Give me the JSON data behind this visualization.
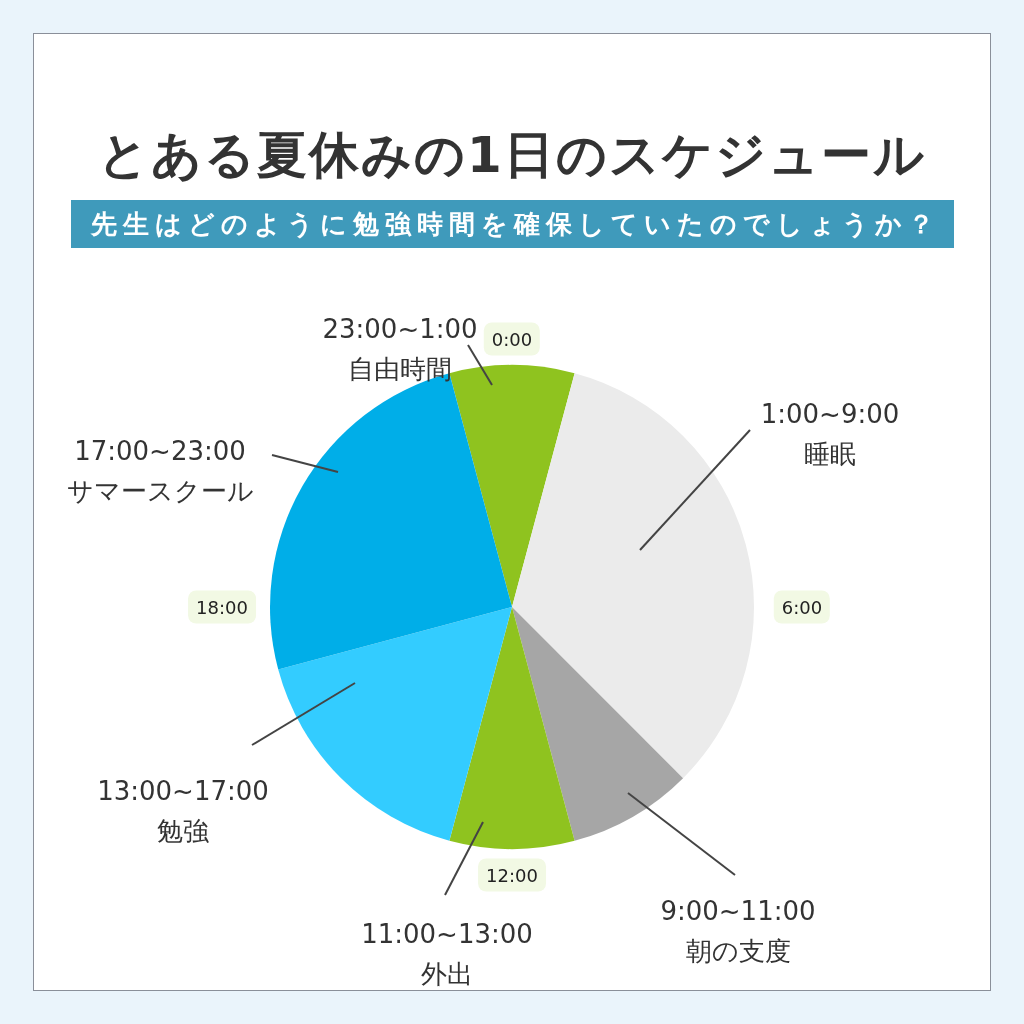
{
  "chart_data": {
    "type": "pie",
    "title": "とある夏休みの1日のスケジュール",
    "subtitle": "先生はどのように勉強時間を確保していたのでしょうか？",
    "categories": [
      "23:00~1:00\n自由時間",
      "1:00~9:00\n睡眠",
      "9:00~11:00\n朝の支度",
      "11:00~13:00\n外出",
      "13:00~17:00\n勉強",
      "17:00~23:00\nサマースクール"
    ],
    "values": [
      8.33,
      33.34,
      8.33,
      8.33,
      16.67,
      25
    ],
    "colors": [
      "#8fc31f",
      "#ebebeb",
      "#a6a6a6",
      "#8fc31f",
      "#33ccff",
      "#00aee8"
    ],
    "annotations": [
      "0:00",
      "6:00",
      "12:00",
      "18:00"
    ]
  }
}
